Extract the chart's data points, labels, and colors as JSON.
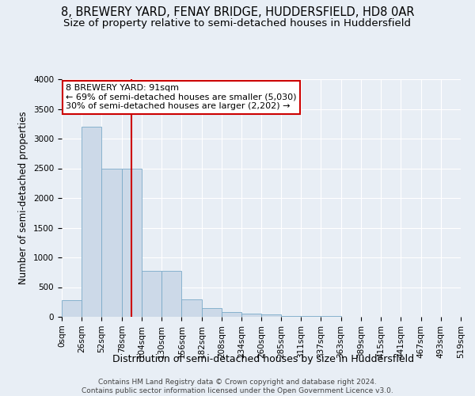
{
  "title": "8, BREWERY YARD, FENAY BRIDGE, HUDDERSFIELD, HD8 0AR",
  "subtitle": "Size of property relative to semi-detached houses in Huddersfield",
  "xlabel": "Distribution of semi-detached houses by size in Huddersfield",
  "ylabel": "Number of semi-detached properties",
  "footnote": "Contains HM Land Registry data © Crown copyright and database right 2024.\nContains public sector information licensed under the Open Government Licence v3.0.",
  "bin_edges": [
    0,
    26,
    52,
    78,
    104,
    130,
    156,
    182,
    208,
    234,
    260,
    285,
    311,
    337,
    363,
    389,
    415,
    441,
    467,
    493,
    519
  ],
  "bar_heights": [
    280,
    3200,
    2500,
    2500,
    780,
    780,
    300,
    150,
    75,
    50,
    35,
    18,
    12,
    8,
    6,
    4,
    3,
    2,
    2,
    1
  ],
  "bar_color": "#ccd9e8",
  "bar_edge_color": "#7aaac8",
  "property_size": 91,
  "property_label": "8 BREWERY YARD: 91sqm",
  "pct_smaller": 69,
  "count_smaller": 5030,
  "pct_larger": 30,
  "count_larger": 2202,
  "vline_color": "#cc0000",
  "annotation_box_color": "#ffffff",
  "annotation_box_edge": "#cc0000",
  "ylim": [
    0,
    4000
  ],
  "yticks": [
    0,
    500,
    1000,
    1500,
    2000,
    2500,
    3000,
    3500,
    4000
  ],
  "background_color": "#e8eef5",
  "grid_color": "#ffffff",
  "title_fontsize": 10.5,
  "subtitle_fontsize": 9.5,
  "ylabel_fontsize": 8.5,
  "xlabel_fontsize": 9,
  "tick_fontsize": 7.5,
  "footnote_fontsize": 6.5
}
